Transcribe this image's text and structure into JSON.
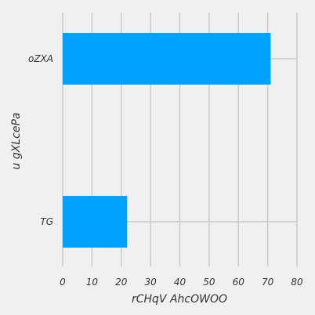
{
  "chart_data": {
    "type": "bar",
    "orientation": "horizontal",
    "categories": [
      "TG",
      "oZXA"
    ],
    "values": [
      22,
      71
    ],
    "xlabel": "rCHqV AhcOWOO",
    "ylabel": "u gXLcePa",
    "xlim": [
      0,
      80
    ],
    "xticks": [
      "0",
      "10",
      "20",
      "30",
      "40",
      "50",
      "60",
      "70",
      "80"
    ],
    "grid": true,
    "bar_color": "#00a2ff",
    "background_color": "#f0f0f0",
    "grid_color": "#cbcbcb"
  }
}
